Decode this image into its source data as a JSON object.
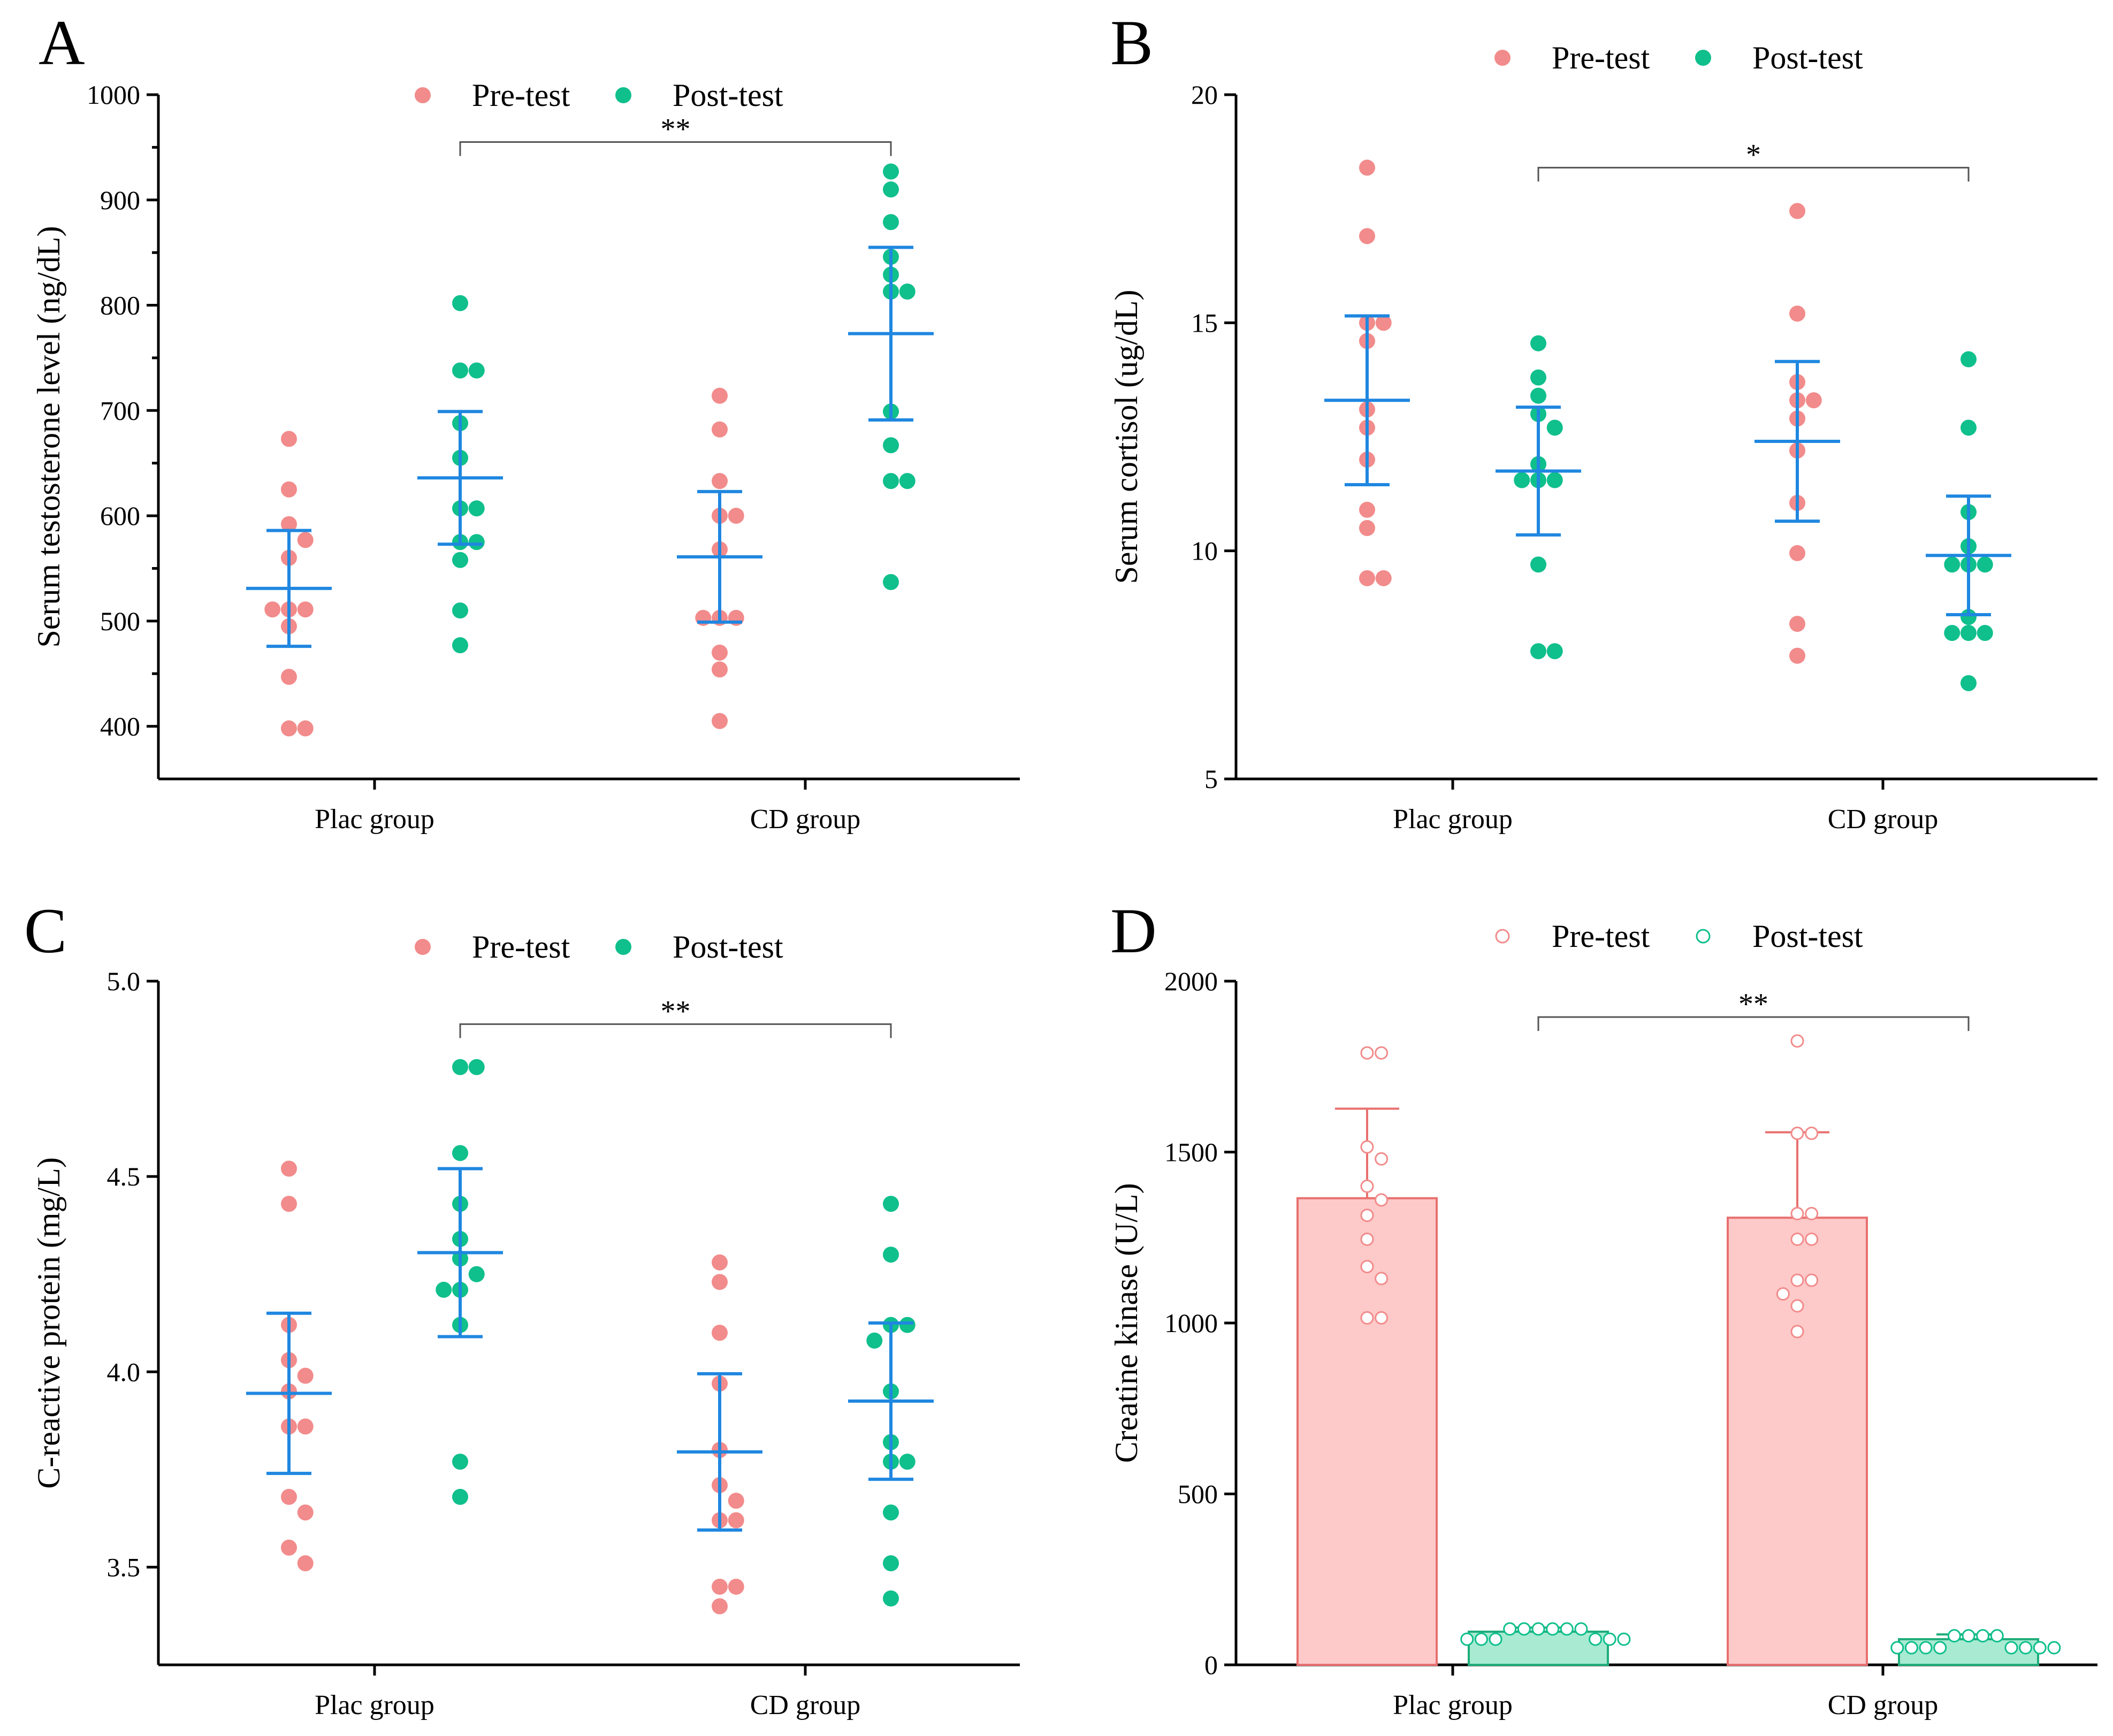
{
  "colors": {
    "pre": "#f28b8b",
    "post": "#0fbf8c",
    "errorbar": "#1f87e0",
    "bar_pre_fill": "#fdc9c9",
    "bar_pre_stroke": "#e8706f",
    "bar_post_fill": "#a8ead2",
    "bar_post_stroke": "#1fad7a"
  },
  "chart_data": [
    {
      "panel": "A",
      "type": "scatter",
      "style": "dots-mean-sd",
      "ylabel": "Serum testosterone level (ng/dL)",
      "ylim": [
        350,
        1000
      ],
      "yticks": [
        400,
        500,
        600,
        700,
        800,
        900,
        1000
      ],
      "ytick_labels": [
        "400",
        "500",
        "600",
        "700",
        "800",
        "900",
        "1000"
      ],
      "minor_ticks": true,
      "categories": [
        "Plac group",
        "CD group"
      ],
      "legend": [
        "Pre-test",
        "Post-test"
      ],
      "significance": {
        "label": "**",
        "from": [
          0,
          1
        ],
        "to": [
          1,
          1
        ],
        "y": 955
      },
      "groups": [
        {
          "category": 0,
          "series": 0,
          "mean": 531,
          "sd": 55,
          "points": [
            673,
            625,
            592,
            577,
            560,
            511,
            511,
            511,
            495,
            447,
            398,
            398
          ]
        },
        {
          "category": 0,
          "series": 1,
          "mean": 636,
          "sd": 63,
          "points": [
            802,
            738,
            738,
            688,
            655,
            607,
            607,
            575,
            575,
            558,
            510,
            477
          ]
        },
        {
          "category": 1,
          "series": 0,
          "mean": 561,
          "sd": 62,
          "points": [
            714,
            682,
            633,
            600,
            600,
            568,
            503,
            503,
            503,
            470,
            454,
            405
          ]
        },
        {
          "category": 1,
          "series": 1,
          "mean": 773,
          "sd": 82,
          "points": [
            927,
            910,
            879,
            846,
            829,
            813,
            813,
            699,
            667,
            633,
            633,
            537
          ]
        }
      ]
    },
    {
      "panel": "B",
      "type": "scatter",
      "style": "dots-mean-sd",
      "ylabel": "Serum cortisol (ug/dL)",
      "ylim": [
        5,
        20
      ],
      "yticks": [
        5,
        10,
        15,
        20
      ],
      "ytick_labels": [
        "5",
        "10",
        "15",
        "20"
      ],
      "minor_ticks": false,
      "categories": [
        "Plac group",
        "CD group"
      ],
      "legend": [
        "Pre-test",
        "Post-test"
      ],
      "significance": {
        "label": "*",
        "from": [
          0,
          1
        ],
        "to": [
          1,
          1
        ],
        "y": 18.4
      },
      "groups": [
        {
          "category": 0,
          "series": 0,
          "mean": 13.3,
          "sd": 1.85,
          "points": [
            18.4,
            16.9,
            15.0,
            15.0,
            14.6,
            13.1,
            12.7,
            12.0,
            10.9,
            10.5,
            9.4,
            9.4
          ]
        },
        {
          "category": 0,
          "series": 1,
          "mean": 11.75,
          "sd": 1.4,
          "points": [
            14.55,
            13.8,
            13.4,
            13.0,
            12.7,
            11.9,
            11.55,
            11.55,
            11.55,
            9.7,
            7.8,
            7.8
          ]
        },
        {
          "category": 1,
          "series": 0,
          "mean": 12.4,
          "sd": 1.75,
          "points": [
            17.45,
            15.2,
            13.7,
            13.3,
            13.3,
            12.9,
            12.2,
            11.05,
            9.95,
            8.4,
            7.7
          ]
        },
        {
          "category": 1,
          "series": 1,
          "mean": 9.9,
          "sd": 1.3,
          "points": [
            14.2,
            12.7,
            10.85,
            10.1,
            9.7,
            9.7,
            9.7,
            8.55,
            8.2,
            8.2,
            8.2,
            7.1
          ]
        }
      ]
    },
    {
      "panel": "C",
      "type": "scatter",
      "style": "dots-mean-sd",
      "ylabel": "C-reactive protein (mg/L)",
      "ylim": [
        3.25,
        5.0
      ],
      "yticks": [
        3.5,
        4.0,
        4.5,
        5.0
      ],
      "ytick_labels": [
        "3.5",
        "4.0",
        "4.5",
        "5.0"
      ],
      "minor_ticks": false,
      "categories": [
        "Plac group",
        "CD group"
      ],
      "legend": [
        "Pre-test",
        "Post-test"
      ],
      "significance": {
        "label": "**",
        "from": [
          0,
          1
        ],
        "to": [
          1,
          1
        ],
        "y": 4.89
      },
      "groups": [
        {
          "category": 0,
          "series": 0,
          "mean": 3.945,
          "sd": 0.205,
          "points": [
            4.52,
            4.43,
            4.12,
            4.03,
            3.99,
            3.95,
            3.86,
            3.86,
            3.68,
            3.64,
            3.55,
            3.51
          ]
        },
        {
          "category": 0,
          "series": 1,
          "mean": 4.305,
          "sd": 0.215,
          "points": [
            4.78,
            4.78,
            4.56,
            4.43,
            4.34,
            4.29,
            4.25,
            4.21,
            4.21,
            4.12,
            3.77,
            3.68
          ]
        },
        {
          "category": 1,
          "series": 0,
          "mean": 3.795,
          "sd": 0.2,
          "points": [
            4.28,
            4.23,
            4.1,
            3.97,
            3.8,
            3.71,
            3.67,
            3.62,
            3.62,
            3.45,
            3.45,
            3.4
          ]
        },
        {
          "category": 1,
          "series": 1,
          "mean": 3.925,
          "sd": 0.2,
          "points": [
            4.43,
            4.3,
            4.12,
            4.12,
            4.08,
            3.95,
            3.82,
            3.77,
            3.77,
            3.64,
            3.51,
            3.42
          ]
        }
      ]
    },
    {
      "panel": "D",
      "type": "bar",
      "style": "bar-sd-points",
      "ylabel": "Creatine kinase (U/L)",
      "ylim": [
        0,
        2000
      ],
      "yticks": [
        0,
        500,
        1000,
        1500,
        2000
      ],
      "ytick_labels": [
        "0",
        "500",
        "1000",
        "1500",
        "2000"
      ],
      "minor_ticks": false,
      "categories": [
        "Plac group",
        "CD group"
      ],
      "legend": [
        "Pre-test",
        "Post-test"
      ],
      "significance": {
        "label": "**",
        "from": [
          0,
          1
        ],
        "to": [
          1,
          1
        ],
        "y": 1895
      },
      "groups": [
        {
          "category": 0,
          "series": 0,
          "mean": 1365,
          "sd": 262,
          "points": [
            1790,
            1790,
            1515,
            1480,
            1400,
            1360,
            1315,
            1245,
            1165,
            1130,
            1015,
            1015
          ]
        },
        {
          "category": 0,
          "series": 1,
          "mean": 97,
          "sd": 12,
          "points": [
            105,
            105,
            105,
            105,
            105,
            105,
            75,
            75,
            75,
            75,
            75,
            75
          ]
        },
        {
          "category": 1,
          "series": 0,
          "mean": 1308,
          "sd": 250,
          "points": [
            1825,
            1555,
            1555,
            1320,
            1320,
            1245,
            1245,
            1125,
            1125,
            1085,
            1050,
            975
          ]
        },
        {
          "category": 1,
          "series": 1,
          "mean": 75,
          "sd": 14,
          "points": [
            85,
            85,
            85,
            85,
            50,
            50,
            50,
            50,
            50,
            50,
            50,
            50
          ]
        }
      ]
    }
  ]
}
